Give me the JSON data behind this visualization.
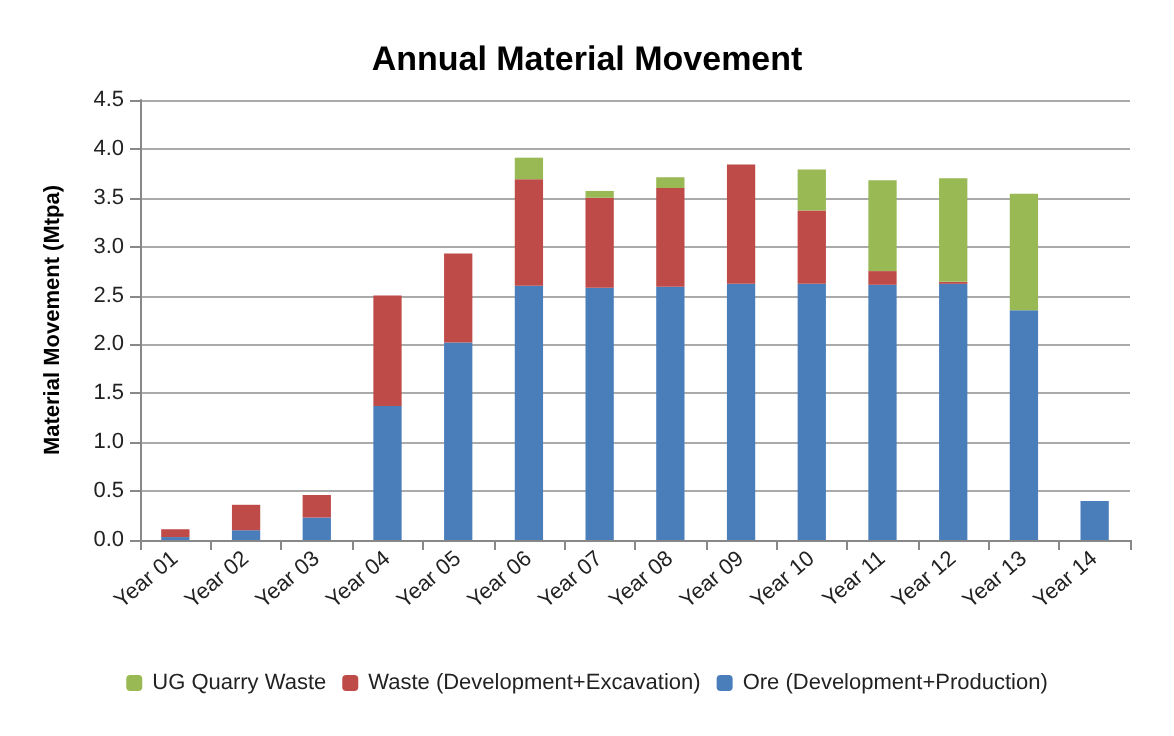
{
  "chart_data": {
    "type": "bar",
    "title": "Annual Material Movement",
    "ylabel": "Material Movement (Mtpa)",
    "categories": [
      "Year 01",
      "Year 02",
      "Year 03",
      "Year 04",
      "Year 05",
      "Year 06",
      "Year 07",
      "Year 08",
      "Year 09",
      "Year 10",
      "Year 11",
      "Year 12",
      "Year 13",
      "Year 14"
    ],
    "stacked": true,
    "series": [
      {
        "name": "Ore (Development+Production)",
        "color": "#4a7ebb",
        "values": [
          0.03,
          0.1,
          0.23,
          1.37,
          2.02,
          2.6,
          2.58,
          2.59,
          2.62,
          2.62,
          2.61,
          2.62,
          2.35,
          0.4
        ]
      },
      {
        "name": "Waste (Development+Excavation)",
        "color": "#be4b48",
        "values": [
          0.08,
          0.26,
          0.23,
          1.13,
          0.91,
          1.09,
          0.92,
          1.01,
          1.22,
          0.75,
          0.14,
          0.02,
          0,
          0
        ]
      },
      {
        "name": "UG Quarry Waste",
        "color": "#98b954",
        "values": [
          0,
          0,
          0,
          0,
          0,
          0.22,
          0.07,
          0.11,
          0,
          0.42,
          0.93,
          1.06,
          1.19,
          0
        ]
      }
    ],
    "ylim": [
      0,
      4.5
    ],
    "yticks": [
      {
        "value": 0,
        "label": "0.0"
      },
      0.5,
      {
        "value": 1,
        "label": "1.0"
      },
      1.5,
      {
        "value": 2,
        "label": "2.0"
      },
      2.5,
      {
        "value": 3,
        "label": "3.0"
      },
      3.5,
      {
        "value": 4,
        "label": "4.0"
      },
      4.5
    ],
    "grid": "y",
    "legend": "bottom"
  }
}
